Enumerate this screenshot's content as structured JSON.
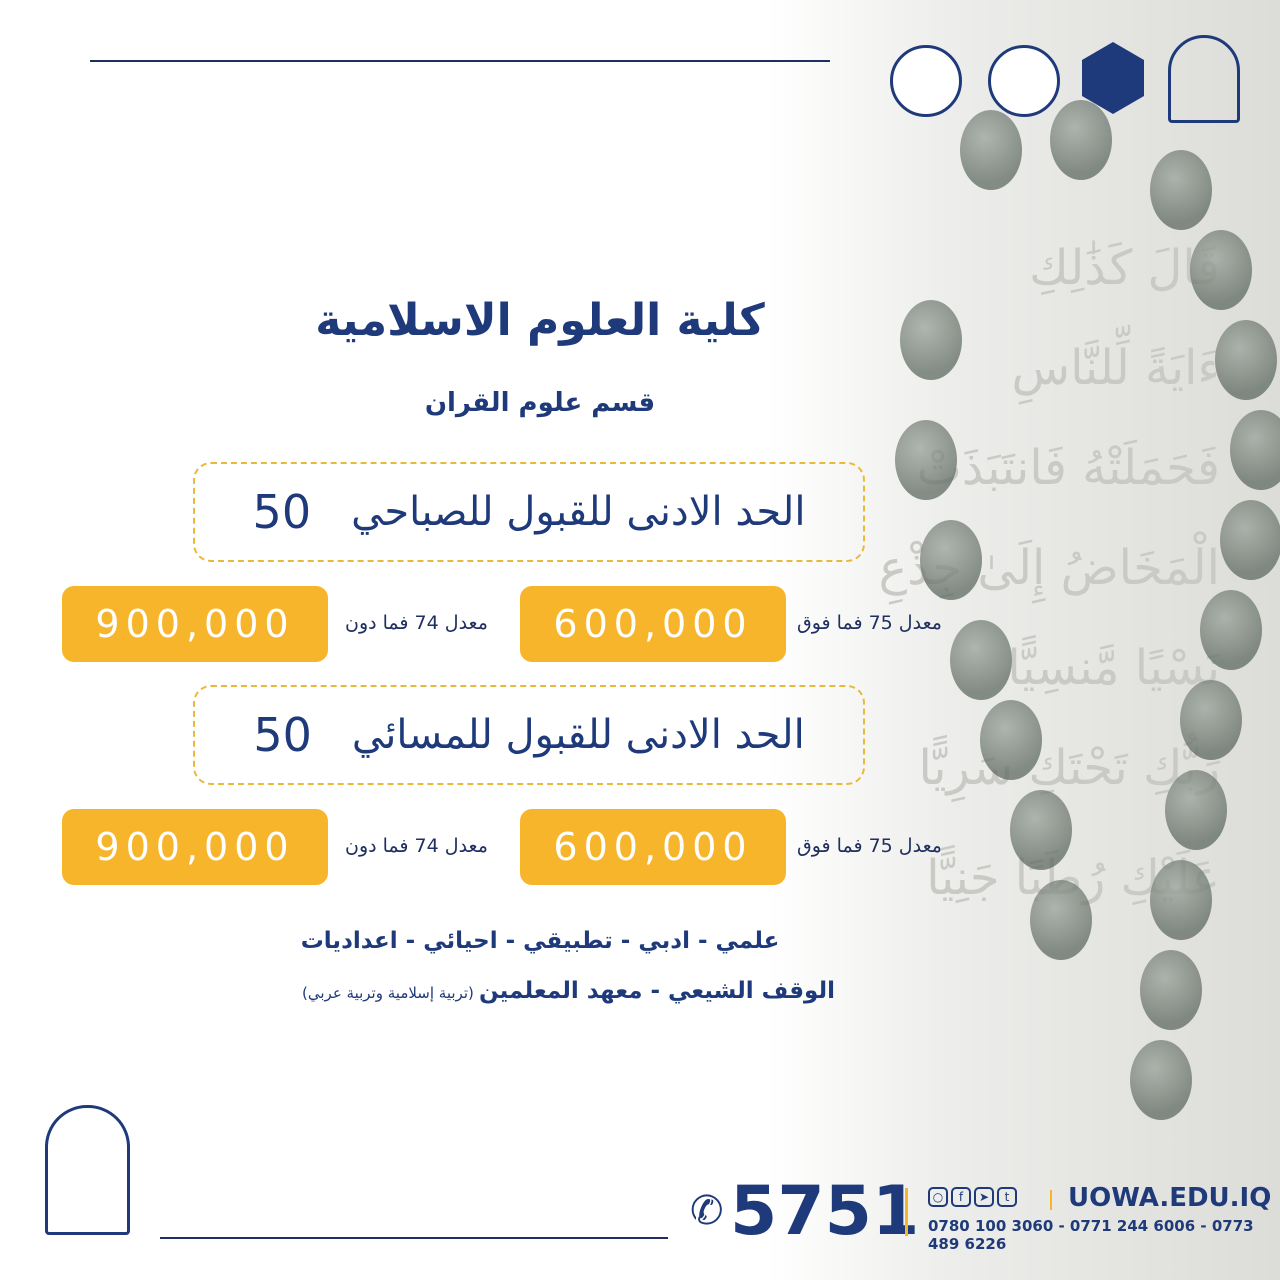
{
  "header": {
    "logos": [
      "holy-shrine-logo",
      "ministry-of-higher-education-logo",
      "college-emblem-logo",
      "university-warith-al-anbiyaa-logo"
    ]
  },
  "title": "كلية العلوم الاسلامية",
  "subtitle": "قسم علوم القران",
  "morning": {
    "label": "الحد الادنى للقبول للصباحي",
    "min": "50",
    "fees": [
      {
        "label": "معدل 75 فما فوق",
        "amount": "600,000"
      },
      {
        "label": "معدل 74 فما دون",
        "amount": "900,000"
      }
    ]
  },
  "evening": {
    "label": "الحد الادنى للقبول للمسائي",
    "min": "50",
    "fees": [
      {
        "label": "معدل 75 فما فوق",
        "amount": "600,000"
      },
      {
        "label": "معدل 74 فما دون",
        "amount": "900,000"
      }
    ]
  },
  "branches": "علمي - ادبي - تطبيقي - احيائي - اعداديات",
  "institutes": {
    "main": "الوقف الشيعي - معهد المعلمين",
    "note": "(تربية إسلامية وتربية عربي)"
  },
  "footer": {
    "hotline": "5751",
    "website": "UOWA.EDU.IQ",
    "phones": "0780 100 3060 - 0771 244 6006 - 0773 489 6226",
    "social_icons": [
      "search-icon",
      "facebook-icon",
      "telegram-icon",
      "twitter-icon"
    ]
  },
  "colors": {
    "primary": "#1f3a7a",
    "accent": "#f7b52c"
  }
}
